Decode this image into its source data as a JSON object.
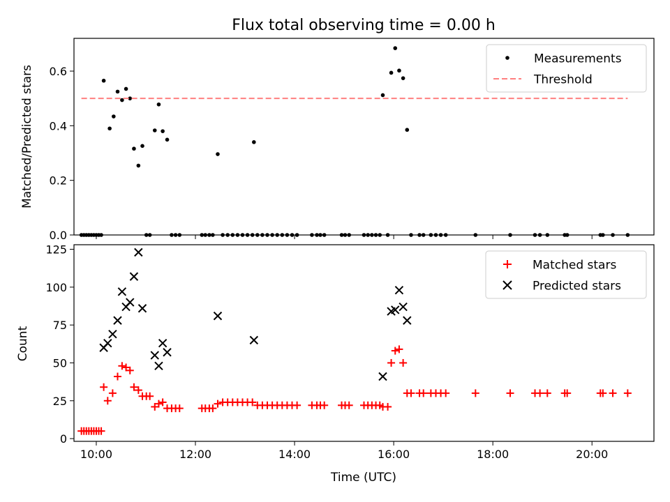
{
  "figure": {
    "title": "Flux total observing time = 0.00 h"
  },
  "chart_data": [
    {
      "type": "scatter",
      "title": "Flux total observing time = 0.00 h",
      "xlabel": "",
      "ylabel": "Matched/Predicted stars",
      "xlim": [
        9.55,
        21.25
      ],
      "ylim": [
        0,
        0.72
      ],
      "x_ticks": [
        10,
        12,
        14,
        16,
        18,
        20
      ],
      "y_ticks": [
        0.0,
        0.2,
        0.4,
        0.6
      ],
      "y_tick_labels": [
        "0.0",
        "0.2",
        "0.4",
        "0.6"
      ],
      "legend": {
        "placement": "top-right",
        "entries": [
          "Measurements",
          "Threshold"
        ]
      },
      "series": [
        {
          "name": "Measurements",
          "color": "#000000",
          "marker": "dot",
          "points": [
            [
              9.7,
              0
            ],
            [
              9.75,
              0
            ],
            [
              9.8,
              0
            ],
            [
              9.85,
              0
            ],
            [
              9.9,
              0
            ],
            [
              9.95,
              0
            ],
            [
              10.0,
              0
            ],
            [
              10.05,
              0
            ],
            [
              10.1,
              0
            ],
            [
              10.15,
              0.565
            ],
            [
              10.27,
              0.39
            ],
            [
              10.35,
              0.434
            ],
            [
              10.43,
              0.525
            ],
            [
              10.52,
              0.494
            ],
            [
              10.6,
              0.535
            ],
            [
              10.68,
              0.5
            ],
            [
              10.76,
              0.316
            ],
            [
              10.85,
              0.254
            ],
            [
              10.93,
              0.326
            ],
            [
              11.01,
              0
            ],
            [
              11.08,
              0
            ],
            [
              11.18,
              0.383
            ],
            [
              11.26,
              0.478
            ],
            [
              11.34,
              0.38
            ],
            [
              11.43,
              0.349
            ],
            [
              11.52,
              0
            ],
            [
              11.6,
              0
            ],
            [
              11.68,
              0
            ],
            [
              12.13,
              0
            ],
            [
              12.2,
              0
            ],
            [
              12.28,
              0
            ],
            [
              12.35,
              0
            ],
            [
              12.45,
              0.296
            ],
            [
              12.55,
              0
            ],
            [
              12.65,
              0
            ],
            [
              12.75,
              0
            ],
            [
              12.85,
              0
            ],
            [
              12.95,
              0
            ],
            [
              13.05,
              0
            ],
            [
              13.15,
              0
            ],
            [
              13.18,
              0.34
            ],
            [
              13.25,
              0
            ],
            [
              13.35,
              0
            ],
            [
              13.45,
              0
            ],
            [
              13.55,
              0
            ],
            [
              13.65,
              0
            ],
            [
              13.75,
              0
            ],
            [
              13.85,
              0
            ],
            [
              13.95,
              0
            ],
            [
              14.05,
              0
            ],
            [
              14.35,
              0
            ],
            [
              14.45,
              0
            ],
            [
              14.52,
              0
            ],
            [
              14.6,
              0
            ],
            [
              14.95,
              0
            ],
            [
              15.02,
              0
            ],
            [
              15.1,
              0
            ],
            [
              15.4,
              0
            ],
            [
              15.48,
              0
            ],
            [
              15.56,
              0
            ],
            [
              15.64,
              0
            ],
            [
              15.72,
              0
            ],
            [
              15.78,
              0.512
            ],
            [
              15.88,
              0
            ],
            [
              15.95,
              0.594
            ],
            [
              16.03,
              0.684
            ],
            [
              16.11,
              0.602
            ],
            [
              16.19,
              0.574
            ],
            [
              16.27,
              0.385
            ],
            [
              16.35,
              0
            ],
            [
              16.52,
              0
            ],
            [
              16.6,
              0
            ],
            [
              16.75,
              0
            ],
            [
              16.85,
              0
            ],
            [
              16.95,
              0
            ],
            [
              17.05,
              0
            ],
            [
              17.65,
              0
            ],
            [
              18.35,
              0
            ],
            [
              18.85,
              0
            ],
            [
              18.95,
              0
            ],
            [
              19.1,
              0
            ],
            [
              19.45,
              0
            ],
            [
              19.5,
              0
            ],
            [
              20.17,
              0
            ],
            [
              20.22,
              0
            ],
            [
              20.42,
              0
            ],
            [
              20.72,
              0
            ]
          ]
        },
        {
          "name": "Threshold",
          "color": "#ff7f7f",
          "style": "dashed",
          "line": [
            [
              9.7,
              0.5
            ],
            [
              20.72,
              0.5
            ]
          ]
        }
      ]
    },
    {
      "type": "scatter",
      "xlabel": "Time (UTC)",
      "ylabel": "Count",
      "xlim": [
        9.55,
        21.25
      ],
      "ylim": [
        -1.8,
        128
      ],
      "x_ticks": [
        10,
        12,
        14,
        16,
        18,
        20
      ],
      "x_tick_labels": [
        "10:00",
        "12:00",
        "14:00",
        "16:00",
        "18:00",
        "20:00"
      ],
      "y_ticks": [
        0,
        25,
        50,
        75,
        100,
        125
      ],
      "y_tick_labels": [
        "0",
        "25",
        "50",
        "75",
        "100",
        "125"
      ],
      "legend": {
        "placement": "top-right",
        "entries": [
          "Matched stars",
          "Predicted stars"
        ]
      },
      "series": [
        {
          "name": "Matched stars",
          "color": "#ff0000",
          "marker": "plus",
          "points": [
            [
              9.7,
              5
            ],
            [
              9.75,
              5
            ],
            [
              9.8,
              5
            ],
            [
              9.85,
              5
            ],
            [
              9.9,
              5
            ],
            [
              9.95,
              5
            ],
            [
              10.0,
              5
            ],
            [
              10.05,
              5
            ],
            [
              10.1,
              5
            ],
            [
              10.15,
              34
            ],
            [
              10.23,
              25
            ],
            [
              10.33,
              30
            ],
            [
              10.43,
              41
            ],
            [
              10.52,
              48
            ],
            [
              10.6,
              47
            ],
            [
              10.68,
              45
            ],
            [
              10.76,
              34
            ],
            [
              10.85,
              32
            ],
            [
              10.93,
              28
            ],
            [
              11.01,
              28
            ],
            [
              11.08,
              28
            ],
            [
              11.18,
              21
            ],
            [
              11.26,
              23
            ],
            [
              11.34,
              24
            ],
            [
              11.43,
              20
            ],
            [
              11.52,
              20
            ],
            [
              11.6,
              20
            ],
            [
              11.68,
              20
            ],
            [
              12.13,
              20
            ],
            [
              12.2,
              20
            ],
            [
              12.28,
              20
            ],
            [
              12.35,
              20
            ],
            [
              12.45,
              23
            ],
            [
              12.55,
              24
            ],
            [
              12.65,
              24
            ],
            [
              12.75,
              24
            ],
            [
              12.85,
              24
            ],
            [
              12.95,
              24
            ],
            [
              13.05,
              24
            ],
            [
              13.15,
              24
            ],
            [
              13.25,
              22
            ],
            [
              13.35,
              22
            ],
            [
              13.45,
              22
            ],
            [
              13.55,
              22
            ],
            [
              13.65,
              22
            ],
            [
              13.75,
              22
            ],
            [
              13.85,
              22
            ],
            [
              13.95,
              22
            ],
            [
              14.05,
              22
            ],
            [
              14.35,
              22
            ],
            [
              14.45,
              22
            ],
            [
              14.52,
              22
            ],
            [
              14.6,
              22
            ],
            [
              14.95,
              22
            ],
            [
              15.02,
              22
            ],
            [
              15.1,
              22
            ],
            [
              15.4,
              22
            ],
            [
              15.48,
              22
            ],
            [
              15.56,
              22
            ],
            [
              15.64,
              22
            ],
            [
              15.72,
              22
            ],
            [
              15.78,
              21
            ],
            [
              15.88,
              21
            ],
            [
              15.95,
              50
            ],
            [
              16.03,
              58
            ],
            [
              16.11,
              59
            ],
            [
              16.19,
              50
            ],
            [
              16.27,
              30
            ],
            [
              16.35,
              30
            ],
            [
              16.52,
              30
            ],
            [
              16.6,
              30
            ],
            [
              16.75,
              30
            ],
            [
              16.85,
              30
            ],
            [
              16.95,
              30
            ],
            [
              17.05,
              30
            ],
            [
              17.65,
              30
            ],
            [
              18.35,
              30
            ],
            [
              18.85,
              30
            ],
            [
              18.95,
              30
            ],
            [
              19.1,
              30
            ],
            [
              19.45,
              30
            ],
            [
              19.5,
              30
            ],
            [
              20.17,
              30
            ],
            [
              20.22,
              30
            ],
            [
              20.42,
              30
            ],
            [
              20.72,
              30
            ]
          ]
        },
        {
          "name": "Predicted stars",
          "color": "#000000",
          "marker": "x",
          "points": [
            [
              10.15,
              60
            ],
            [
              10.23,
              63
            ],
            [
              10.33,
              69
            ],
            [
              10.43,
              78
            ],
            [
              10.52,
              97
            ],
            [
              10.6,
              87
            ],
            [
              10.68,
              90
            ],
            [
              10.76,
              107
            ],
            [
              10.85,
              123
            ],
            [
              10.93,
              86
            ],
            [
              11.18,
              55
            ],
            [
              11.26,
              48
            ],
            [
              11.34,
              63
            ],
            [
              11.43,
              57
            ],
            [
              12.45,
              81
            ],
            [
              13.18,
              65
            ],
            [
              15.78,
              41
            ],
            [
              15.95,
              84
            ],
            [
              16.03,
              85
            ],
            [
              16.11,
              98
            ],
            [
              16.19,
              87
            ],
            [
              16.27,
              78
            ]
          ]
        }
      ]
    }
  ]
}
